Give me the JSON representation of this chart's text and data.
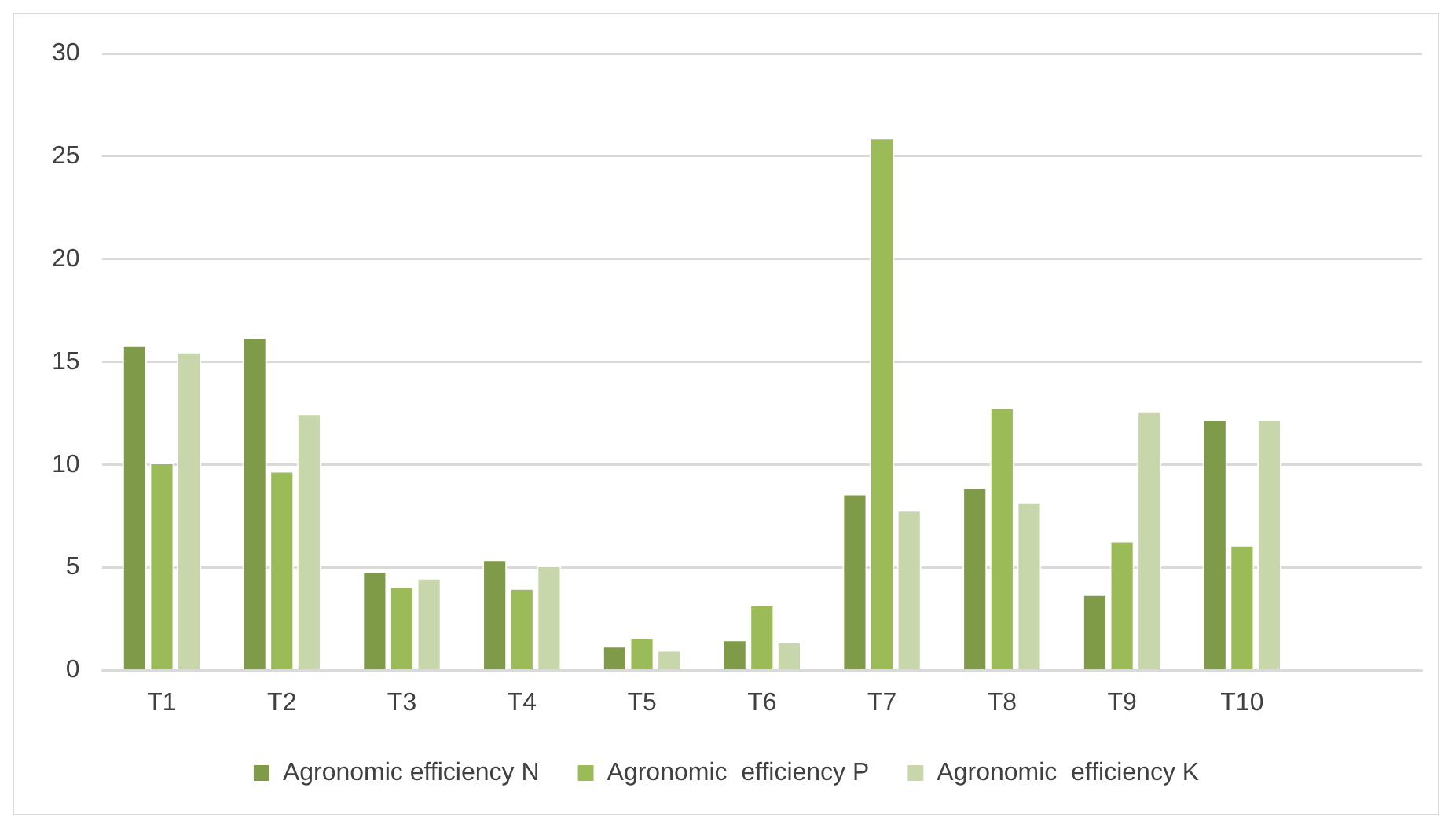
{
  "chart_data": {
    "type": "bar",
    "categories": [
      "T1",
      "T2",
      "T3",
      "T4",
      "T5",
      "T6",
      "T7",
      "T8",
      "T9",
      "T10",
      null
    ],
    "series": [
      {
        "name": "Agronomic efficiency N",
        "color": "#7f9a48",
        "values": [
          15.8,
          16.2,
          4.8,
          5.4,
          1.2,
          1.5,
          8.6,
          8.9,
          3.7,
          12.2,
          null
        ]
      },
      {
        "name": "Agronomic  efficiency P",
        "color": "#9bbb59",
        "values": [
          10.1,
          9.7,
          4.1,
          4.0,
          1.6,
          3.2,
          25.9,
          12.8,
          6.3,
          6.1,
          null
        ]
      },
      {
        "name": "Agronomic  efficiency K",
        "color": "#c7d7ab",
        "values": [
          15.5,
          12.5,
          4.5,
          5.1,
          1.0,
          1.4,
          7.8,
          8.2,
          12.6,
          12.2,
          null
        ]
      }
    ],
    "ylim": [
      0,
      30
    ],
    "yticks": [
      0,
      5,
      10,
      15,
      20,
      25,
      30
    ],
    "grid": "y",
    "legend": "bottom"
  }
}
